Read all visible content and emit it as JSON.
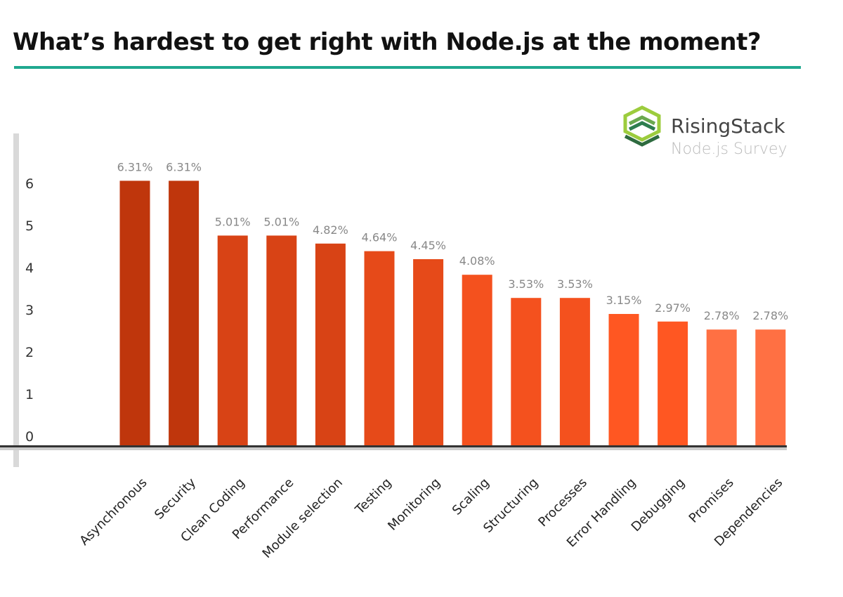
{
  "title": "What’s hardest to get right with Node.js at the moment?",
  "logo": {
    "brand": "RisingStack",
    "subtitle": "Node.js Survey",
    "icon": "risingstack-hexagon-logo",
    "colors": [
      "#8bc34a",
      "#2e7d4f"
    ]
  },
  "accent_color": "#1fa88f",
  "chart_data": {
    "type": "bar",
    "title": "What’s hardest to get right with Node.js at the moment?",
    "xlabel": "",
    "ylabel": "",
    "ylim": [
      0,
      6.5
    ],
    "yticks": [
      "0",
      "1",
      "2",
      "3",
      "4",
      "5",
      "6"
    ],
    "grid": false,
    "categories": [
      "Asynchronous",
      "Security",
      "Clean Coding",
      "Performance",
      "Module selection",
      "Testing",
      "Monitoring",
      "Scaling",
      "Structuring",
      "Processes",
      "Error Handling",
      "Debugging",
      "Promises",
      "Dependencies"
    ],
    "values": [
      6.31,
      6.31,
      5.01,
      5.01,
      4.82,
      4.64,
      4.45,
      4.08,
      3.53,
      3.53,
      3.15,
      2.97,
      2.78,
      2.78
    ],
    "data_labels": [
      "6.31%",
      "6.31%",
      "5.01%",
      "5.01%",
      "4.82%",
      "4.64%",
      "4.45%",
      "4.08%",
      "3.53%",
      "3.53%",
      "3.15%",
      "2.97%",
      "2.78%",
      "2.78%"
    ],
    "colors": [
      "#bf360c",
      "#bf360c",
      "#d84315",
      "#d84315",
      "#d84315",
      "#e64a19",
      "#e64a19",
      "#f4511e",
      "#f4511e",
      "#f4511e",
      "#ff5722",
      "#ff5722",
      "#ff7043",
      "#ff7043"
    ]
  }
}
